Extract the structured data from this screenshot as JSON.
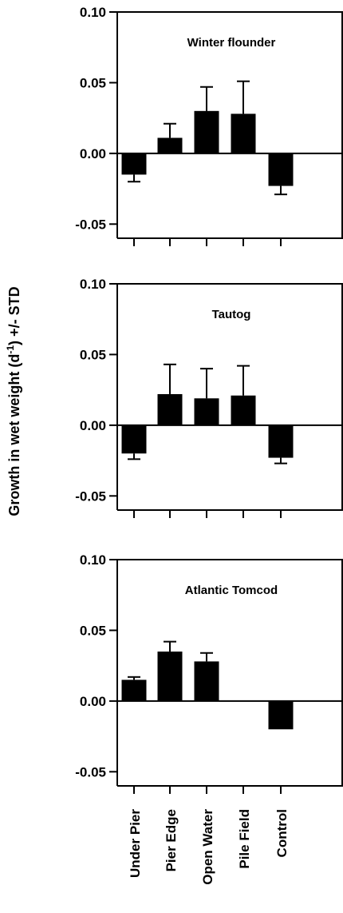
{
  "chart_data": {
    "type": "bar",
    "ylabel_parts": [
      "Growth in wet weight (d",
      "-1",
      ") +/- STD"
    ],
    "categories": [
      "Under Pier",
      "Pier Edge",
      "Open Water",
      "Pile Field",
      "Control"
    ],
    "ylim": [
      -0.06,
      0.1
    ],
    "yticks": [
      0.1,
      0.05,
      0.0,
      -0.05
    ],
    "ytick_labels": [
      "0.10",
      "0.05",
      "0.00",
      "-0.05"
    ],
    "panels": [
      {
        "title": "Winter flounder",
        "values": [
          -0.015,
          0.011,
          0.03,
          0.028,
          -0.023
        ],
        "errors": [
          0.005,
          0.01,
          0.017,
          0.023,
          0.006
        ]
      },
      {
        "title": "Tautog",
        "values": [
          -0.02,
          0.022,
          0.019,
          0.021,
          -0.023
        ],
        "errors": [
          0.004,
          0.021,
          0.021,
          0.021,
          0.004
        ]
      },
      {
        "title": "Atlantic Tomcod",
        "values": [
          0.015,
          0.035,
          0.028,
          null,
          -0.02
        ],
        "errors": [
          0.002,
          0.007,
          0.006,
          null,
          0.0
        ]
      }
    ]
  }
}
